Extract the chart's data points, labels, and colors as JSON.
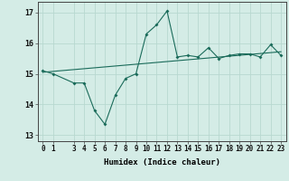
{
  "xlabel": "Humidex (Indice chaleur)",
  "background_color": "#d4ece6",
  "line_color": "#1a6b5a",
  "grid_color": "#b8d8d0",
  "x_values": [
    0,
    1,
    3,
    4,
    5,
    6,
    7,
    8,
    9,
    10,
    11,
    12,
    13,
    14,
    15,
    16,
    17,
    18,
    19,
    20,
    21,
    22,
    23
  ],
  "y_values": [
    15.1,
    15.0,
    14.7,
    14.7,
    13.8,
    13.35,
    14.3,
    14.85,
    15.0,
    16.3,
    16.6,
    17.05,
    15.55,
    15.6,
    15.55,
    15.85,
    15.5,
    15.6,
    15.65,
    15.65,
    15.55,
    15.95,
    15.6
  ],
  "trend_x": [
    0,
    23
  ],
  "trend_y": [
    15.05,
    15.72
  ],
  "ylim": [
    12.8,
    17.35
  ],
  "xlim": [
    -0.5,
    23.5
  ],
  "yticks": [
    13,
    14,
    15,
    16,
    17
  ],
  "xticks": [
    0,
    1,
    3,
    4,
    5,
    6,
    7,
    8,
    9,
    10,
    11,
    12,
    13,
    14,
    15,
    16,
    17,
    18,
    19,
    20,
    21,
    22,
    23
  ],
  "tick_fontsize": 5.5,
  "xlabel_fontsize": 6.5
}
